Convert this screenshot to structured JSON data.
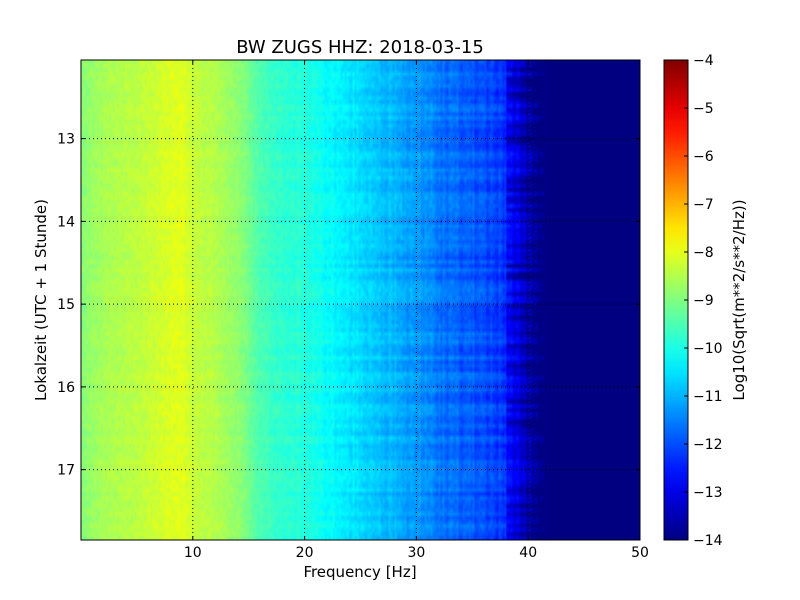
{
  "chart_data": {
    "type": "heatmap",
    "title": "BW ZUGS HHZ: 2018-03-15",
    "xlabel": "Frequency [Hz]",
    "ylabel": "Lokalzeit (UTC + 1 Stunde)",
    "xlim": [
      0,
      50
    ],
    "ylim": [
      12.05,
      17.85
    ],
    "x_ticks": [
      10,
      20,
      30,
      40,
      50
    ],
    "y_ticks": [
      13,
      14,
      15,
      16,
      17
    ],
    "grid": true,
    "colorbar": {
      "label": "Log10(Sqrt(m**2/s**2/Hz))",
      "min": -14,
      "max": -4,
      "ticks": [
        -4,
        -5,
        -6,
        -7,
        -8,
        -9,
        -10,
        -11,
        -12,
        -13,
        -14
      ],
      "colormap": "jet"
    },
    "mean_spectrum": {
      "frequency_hz": [
        0,
        2,
        5,
        8,
        9,
        10,
        12,
        14,
        16,
        18,
        20,
        22,
        25,
        28,
        30,
        33,
        35,
        37,
        38,
        39,
        40,
        41,
        42,
        45,
        50
      ],
      "value": [
        -8.9,
        -8.6,
        -8.4,
        -8.1,
        -8.0,
        -8.3,
        -8.5,
        -8.8,
        -9.5,
        -9.8,
        -9.9,
        -10.2,
        -10.6,
        -11.0,
        -11.3,
        -11.7,
        -11.9,
        -12.1,
        -12.4,
        -12.9,
        -13.4,
        -13.9,
        -14,
        -14,
        -14
      ]
    }
  }
}
